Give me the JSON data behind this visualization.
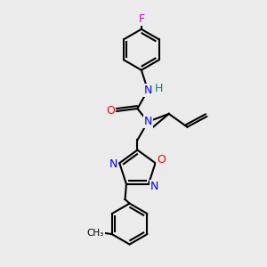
{
  "bg_color": "#ebebeb",
  "atom_colors": {
    "C": "#000000",
    "N": "#0000ff",
    "O": "#ff0000",
    "F": "#cc00cc",
    "H": "#008080"
  },
  "bond_color": "#000000",
  "bond_width": 1.5
}
